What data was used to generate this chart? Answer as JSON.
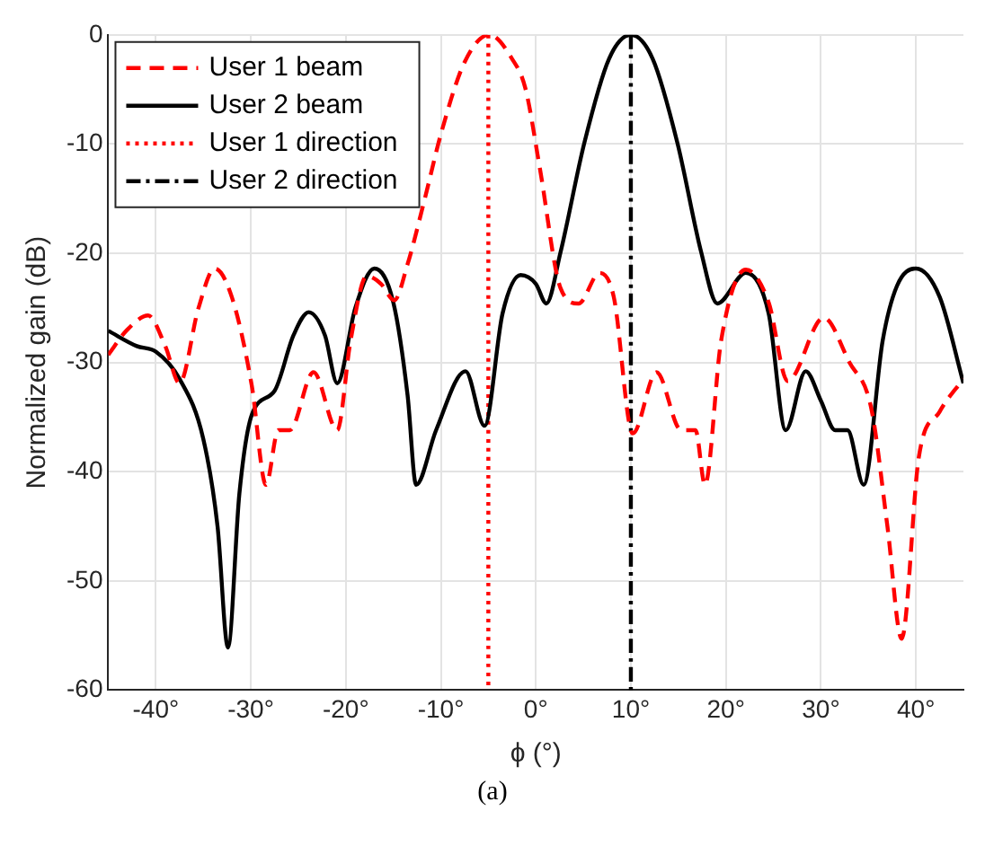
{
  "chart_data": {
    "type": "line",
    "xlabel": "ϕ (°)",
    "ylabel": "Normalized gain (dB)",
    "annotations": [
      "(a)"
    ],
    "xlim": [
      -45,
      45
    ],
    "ylim": [
      -60,
      0
    ],
    "xticks": [
      {
        "value": -40,
        "label": "-40°"
      },
      {
        "value": -30,
        "label": "-30°"
      },
      {
        "value": -20,
        "label": "-20°"
      },
      {
        "value": -10,
        "label": "-10°"
      },
      {
        "value": 0,
        "label": "0°"
      },
      {
        "value": 10,
        "label": "10°"
      },
      {
        "value": 20,
        "label": "20°"
      },
      {
        "value": 30,
        "label": "30°"
      },
      {
        "value": 40,
        "label": "40°"
      }
    ],
    "yticks": [
      -60,
      -50,
      -40,
      -30,
      -20,
      -10,
      0
    ],
    "grid": true,
    "legend": "top left",
    "marker": "none",
    "series": [
      {
        "name": "User 1 beam",
        "color": "#ff0000",
        "line_style": "dashed",
        "x": [
          -45,
          -43,
          -40.8,
          -39,
          -37.5,
          -35.5,
          -33.8,
          -32,
          -29.9,
          -28.4,
          -27.1,
          -25.9,
          -23.4,
          -20.9,
          -19.5,
          -17.8,
          -16.3,
          -14.9,
          -13.5,
          -11.8,
          -9.9,
          -7.5,
          -4.9,
          -2.5,
          -1.1,
          0.4,
          2.6,
          4.5,
          6.7,
          8.2,
          10.2,
          12.7,
          15.3,
          16.8,
          17.8,
          19.5,
          22.1,
          24.5,
          26.5,
          30.3,
          33,
          35.3,
          37,
          38.5,
          40.3,
          42.5,
          45
        ],
        "values": [
          -29.3,
          -27,
          -25.7,
          -28.5,
          -31.9,
          -25,
          -21.4,
          -24,
          -32.1,
          -41.2,
          -36.2,
          -36.2,
          -30.9,
          -36.2,
          -28,
          -22.1,
          -22.8,
          -24.3,
          -21,
          -15.4,
          -8.8,
          -2.5,
          0,
          -2.2,
          -4.9,
          -12.1,
          -23.2,
          -24.6,
          -21.8,
          -24,
          -36.5,
          -30.9,
          -36.2,
          -36.2,
          -41.2,
          -28,
          -21.5,
          -24.5,
          -31.7,
          -25.9,
          -30,
          -34.2,
          -45,
          -55.3,
          -38.7,
          -34.5,
          -31.5
        ]
      },
      {
        "name": "User 2 beam",
        "color": "#000000",
        "line_style": "solid",
        "x": [
          -45,
          -42,
          -40,
          -37.5,
          -35,
          -33.5,
          -32.4,
          -31.2,
          -29.9,
          -27.5,
          -25.5,
          -23.9,
          -22.2,
          -20.9,
          -19,
          -17,
          -15,
          -13.5,
          -12.6,
          -10.5,
          -7.4,
          -5.4,
          -3.5,
          -1.6,
          0,
          1.1,
          2.6,
          5.1,
          7.7,
          10,
          12.3,
          14.9,
          17.4,
          19.1,
          22.1,
          24.5,
          26.3,
          28.4,
          30,
          31.5,
          32.8,
          34.5,
          36.5,
          38,
          40,
          42.5,
          45
        ],
        "values": [
          -27.1,
          -28.5,
          -29,
          -31.5,
          -37,
          -45,
          -56.1,
          -42,
          -34.8,
          -32.6,
          -27.5,
          -25.4,
          -27.5,
          -31.9,
          -25,
          -21.4,
          -24.5,
          -33,
          -41.2,
          -36.2,
          -30.8,
          -35.8,
          -25.5,
          -22,
          -22.8,
          -24.6,
          -19.9,
          -9.9,
          -2.2,
          0,
          -2.2,
          -9.9,
          -19.9,
          -24.6,
          -21.8,
          -25.5,
          -36.2,
          -30.8,
          -33.5,
          -36.2,
          -36.2,
          -41.2,
          -28,
          -23,
          -21.4,
          -24,
          -31.9
        ]
      },
      {
        "name": "User 1 direction",
        "color": "#ff0000",
        "line_style": "dotted",
        "x": [
          -5,
          -5
        ],
        "values": [
          0,
          -60
        ]
      },
      {
        "name": "User 2 direction",
        "color": "#000000",
        "line_style": "dashdot",
        "x": [
          10,
          10
        ],
        "values": [
          0,
          -60
        ]
      }
    ]
  }
}
